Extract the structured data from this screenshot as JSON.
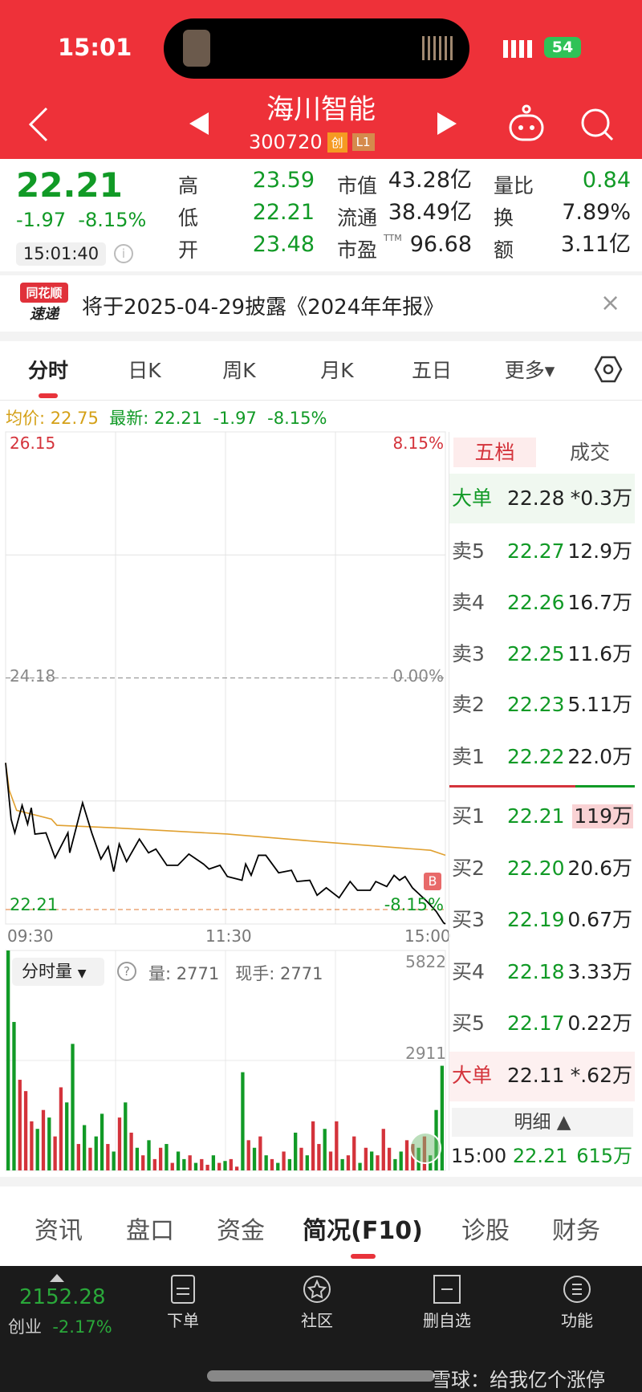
{
  "status": {
    "time": "15:01",
    "battery": "54"
  },
  "header": {
    "title": "海川智能",
    "code": "300720",
    "badge1": "创",
    "badge2": "L1"
  },
  "quote": {
    "price": "22.21",
    "change": "-1.97",
    "change_pct": "-8.15%",
    "time": "15:01:40",
    "rows": [
      {
        "l1": "高",
        "v1": "23.59",
        "l2": "市值",
        "v2": "43.28亿",
        "l3": "量比",
        "v3": "0.84"
      },
      {
        "l1": "低",
        "v1": "22.21",
        "l2": "流通",
        "v2": "38.49亿",
        "l3": "换",
        "v3": "7.89%"
      },
      {
        "l1": "开",
        "v1": "23.48",
        "l2": "市盈",
        "v2": "96.68",
        "l3": "额",
        "v3": "3.11亿"
      }
    ],
    "pe_sup": "TTM"
  },
  "banner": {
    "logo_top": "同花顺",
    "logo_bottom": "速递",
    "text": "将于2025-04-29披露《2024年年报》",
    "close": "×"
  },
  "tabs": [
    "分时",
    "日K",
    "周K",
    "月K",
    "五日",
    "更多▾"
  ],
  "info": {
    "avg_label": "均价: 22.75",
    "latest": "最新: 22.21",
    "chg": "-1.97",
    "pct": "-8.15%"
  },
  "chart_data": {
    "type": "line",
    "y_labels": {
      "top": "26.15",
      "mid": "24.18",
      "bottom": "22.21",
      "top_pct": "8.15%",
      "mid_pct": "0.00%",
      "bottom_pct": "-8.15%"
    },
    "ylim": [
      22.21,
      26.15
    ],
    "x_ticks": [
      "09:30",
      "11:30",
      "15:00"
    ],
    "price": [
      [
        "09:30",
        23.5
      ],
      [
        "09:33",
        23.05
      ],
      [
        "09:35",
        22.94
      ],
      [
        "09:39",
        23.16
      ],
      [
        "09:42",
        23.01
      ],
      [
        "09:44",
        23.14
      ],
      [
        "09:46",
        22.93
      ],
      [
        "09:52",
        22.94
      ],
      [
        "09:57",
        22.74
      ],
      [
        "10:04",
        22.94
      ],
      [
        "10:05",
        22.78
      ],
      [
        "10:12",
        23.18
      ],
      [
        "10:17",
        22.94
      ],
      [
        "10:22",
        22.73
      ],
      [
        "10:26",
        22.83
      ],
      [
        "10:29",
        22.63
      ],
      [
        "10:32",
        22.85
      ],
      [
        "10:36",
        22.71
      ],
      [
        "10:43",
        22.89
      ],
      [
        "10:48",
        22.78
      ],
      [
        "10:52",
        22.81
      ],
      [
        "10:58",
        22.68
      ],
      [
        "11:04",
        22.68
      ],
      [
        "11:10",
        22.77
      ],
      [
        "11:18",
        22.69
      ],
      [
        "11:21",
        22.65
      ],
      [
        "11:27",
        22.68
      ],
      [
        "13:01",
        22.59
      ],
      [
        "13:09",
        22.56
      ],
      [
        "13:11",
        22.69
      ],
      [
        "13:14",
        22.6
      ],
      [
        "13:18",
        22.76
      ],
      [
        "13:22",
        22.76
      ],
      [
        "13:29",
        22.62
      ],
      [
        "13:36",
        22.64
      ],
      [
        "13:39",
        22.55
      ],
      [
        "13:46",
        22.56
      ],
      [
        "13:50",
        22.44
      ],
      [
        "13:55",
        22.5
      ],
      [
        "14:02",
        22.42
      ],
      [
        "14:08",
        22.55
      ],
      [
        "14:12",
        22.48
      ],
      [
        "14:19",
        22.48
      ],
      [
        "14:22",
        22.55
      ],
      [
        "14:28",
        22.51
      ],
      [
        "14:32",
        22.6
      ],
      [
        "14:35",
        22.56
      ],
      [
        "14:38",
        22.59
      ],
      [
        "14:42",
        22.5
      ],
      [
        "14:50",
        22.39
      ],
      [
        "14:55",
        22.31
      ],
      [
        "14:59",
        22.22
      ],
      [
        "15:00",
        22.21
      ]
    ],
    "avg": [
      [
        "09:30",
        23.5
      ],
      [
        "09:32",
        23.28
      ],
      [
        "09:36",
        23.12
      ],
      [
        "09:55",
        23.05
      ],
      [
        "09:58",
        23.0
      ],
      [
        "10:29",
        22.98
      ],
      [
        "13:01",
        22.93
      ],
      [
        "13:50",
        22.87
      ],
      [
        "14:52",
        22.8
      ],
      [
        "15:00",
        22.76
      ]
    ],
    "marker": "B",
    "volume": {
      "max_label": "5822",
      "mid_label": "2911",
      "ylim": [
        0,
        5822
      ],
      "values": [
        5822,
        3930,
        2400,
        2100,
        1300,
        1100,
        1600,
        1400,
        900,
        2200,
        1800,
        3350,
        700,
        1200,
        600,
        900,
        1500,
        700,
        500,
        1400,
        1800,
        1000,
        600,
        400,
        800,
        300,
        600,
        700,
        200,
        500,
        300,
        400,
        200,
        300,
        150,
        400,
        200,
        250,
        300,
        100,
        2600,
        800,
        600,
        900,
        400,
        300,
        200,
        500,
        300,
        1000,
        600,
        400,
        1300,
        700,
        1100,
        500,
        1300,
        300,
        400,
        900,
        200,
        600,
        500,
        400,
        1100,
        600,
        300,
        500,
        800,
        700,
        600,
        900,
        400,
        1600,
        2771
      ],
      "up": [
        1,
        1,
        0,
        0,
        0,
        1,
        0,
        1,
        0,
        0,
        1,
        1,
        0,
        1,
        0,
        1,
        1,
        0,
        1,
        0,
        1,
        0,
        1,
        0,
        1,
        0,
        0,
        1,
        0,
        1,
        1,
        0,
        1,
        0,
        0,
        1,
        0,
        1,
        0,
        0,
        1,
        0,
        1,
        0,
        1,
        0,
        1,
        0,
        1,
        1,
        0,
        1,
        0,
        0,
        1,
        0,
        0,
        1,
        0,
        0,
        1,
        0,
        1,
        0,
        0,
        0,
        1,
        1,
        0,
        0,
        1,
        0,
        1,
        1,
        1
      ]
    },
    "colors": {
      "price": "#000000",
      "avg": "#e0a030",
      "up": "#d4333b",
      "down": "#119a26"
    }
  },
  "volume_bar": {
    "selector": "分时量",
    "help": "?",
    "vol": "量: 2771",
    "hand": "现手: 2771"
  },
  "book": {
    "tabs": [
      "五档",
      "成交"
    ],
    "top_big": {
      "label": "大单",
      "price": "22.28",
      "vol": "*0.3万"
    },
    "asks": [
      {
        "label": "卖5",
        "price": "22.27",
        "vol": "12.9万"
      },
      {
        "label": "卖4",
        "price": "22.26",
        "vol": "16.7万"
      },
      {
        "label": "卖3",
        "price": "22.25",
        "vol": "11.6万"
      },
      {
        "label": "卖2",
        "price": "22.23",
        "vol": "5.11万"
      },
      {
        "label": "卖1",
        "price": "22.22",
        "vol": "22.0万"
      }
    ],
    "bids": [
      {
        "label": "买1",
        "price": "22.21",
        "vol": "119万"
      },
      {
        "label": "买2",
        "price": "22.20",
        "vol": "20.6万"
      },
      {
        "label": "买3",
        "price": "22.19",
        "vol": "0.67万"
      },
      {
        "label": "买4",
        "price": "22.18",
        "vol": "3.33万"
      },
      {
        "label": "买5",
        "price": "22.17",
        "vol": "0.22万"
      }
    ],
    "bottom_big": {
      "label": "大单",
      "price": "22.11",
      "vol": "*.62万"
    },
    "detail": "明细 ▲",
    "trade": {
      "time": "15:00",
      "price": "22.21",
      "vol": "615万"
    }
  },
  "bottom_tabs": [
    "资讯",
    "盘口",
    "资金",
    "简况(F10)",
    "诊股",
    "财务"
  ],
  "dock": {
    "index_value": "2152.28",
    "index_name": "创业",
    "index_pct": "-2.17%",
    "items": [
      {
        "label": "下单",
        "icon": "document-icon"
      },
      {
        "label": "社区",
        "icon": "community-star-icon"
      },
      {
        "label": "删自选",
        "icon": "remove-watchlist-icon"
      },
      {
        "label": "功能",
        "icon": "menu-icon"
      }
    ]
  },
  "watermark": "雪球：给我亿个涨停"
}
